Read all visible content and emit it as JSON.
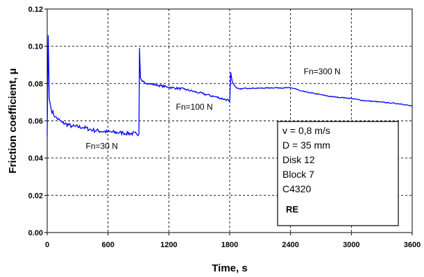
{
  "chart_data": {
    "type": "line",
    "xlabel": "Time, s",
    "ylabel": "Friction coefficient, μ",
    "xlim": [
      0,
      3600
    ],
    "ylim": [
      0,
      0.12
    ],
    "x_ticks": [
      "0",
      "600",
      "1200",
      "1800",
      "2400",
      "3000",
      "3600"
    ],
    "y_ticks": [
      "0.00",
      "0.02",
      "0.04",
      "0.06",
      "0.08",
      "0.10",
      "0.12"
    ],
    "grid": "dashed",
    "line_color": "#0000ff",
    "series": [
      {
        "x": [
          0,
          10,
          20,
          40,
          80,
          150,
          250,
          350,
          450,
          600,
          750,
          880,
          895,
          905,
          910,
          920,
          940,
          1000,
          1100,
          1200,
          1350,
          1500,
          1650,
          1790,
          1800,
          1810,
          1825,
          1845,
          1870,
          1900,
          1950,
          2000,
          2100,
          2200,
          2300,
          2400,
          2450,
          2500,
          2600,
          2700,
          2800,
          2900,
          3000,
          3100,
          3200,
          3300,
          3400,
          3500,
          3600
        ],
        "y": [
          0.052,
          0.106,
          0.072,
          0.066,
          0.062,
          0.059,
          0.057,
          0.0565,
          0.055,
          0.054,
          0.0535,
          0.053,
          0.052,
          0.053,
          0.099,
          0.083,
          0.081,
          0.08,
          0.079,
          0.078,
          0.077,
          0.075,
          0.073,
          0.071,
          0.07,
          0.086,
          0.081,
          0.079,
          0.0775,
          0.077,
          0.0775,
          0.0775,
          0.0775,
          0.0777,
          0.0777,
          0.0777,
          0.0772,
          0.076,
          0.075,
          0.074,
          0.073,
          0.0725,
          0.072,
          0.071,
          0.0705,
          0.07,
          0.0695,
          0.069,
          0.0678
        ]
      }
    ],
    "annotations": [
      {
        "text": "Fn=30 N",
        "x": 380,
        "y": 0.045
      },
      {
        "text": "Fn=100 N",
        "x": 1270,
        "y": 0.066
      },
      {
        "text": "Fn=300 N",
        "x": 2530,
        "y": 0.085
      }
    ],
    "info_box": {
      "lines": [
        "v = 0,8 m/s",
        "D = 35 mm",
        "Disk 12",
        "Block 7",
        "C4320"
      ],
      "tag": "RE"
    }
  }
}
